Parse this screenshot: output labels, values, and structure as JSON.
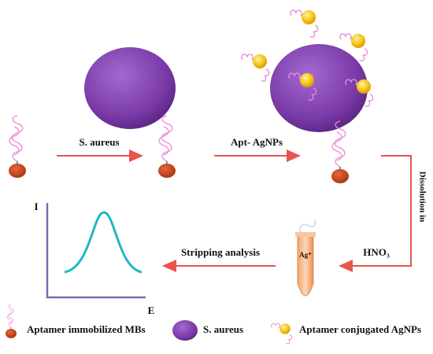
{
  "steps": {
    "s_aureus": "S. aureus",
    "apt_agnps": "Apt- AgNPs",
    "dissolution": "Dissolution in",
    "hno3": "HNO₃",
    "stripping": "Stripping analysis",
    "ag_ion": "Ag⁺"
  },
  "plot": {
    "y_label": "I",
    "x_label": "E"
  },
  "legend": {
    "items": [
      "Aptamer immobilized MBs",
      "S. aureus",
      "Aptamer conjugated AgNPs"
    ]
  }
}
